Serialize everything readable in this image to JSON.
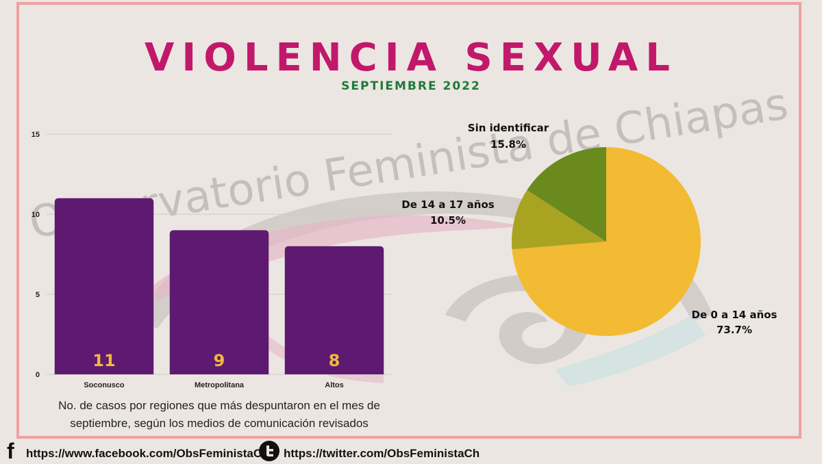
{
  "header": {
    "title": "VIOLENCIA SEXUAL",
    "subtitle": "SEPTIEMBRE 2022"
  },
  "watermark_text": "Observatorio Feminista de Chiapas",
  "chart_data": [
    {
      "type": "bar",
      "categories": [
        "Soconusco",
        "Metropolitana",
        "Altos"
      ],
      "values": [
        11,
        9,
        8
      ],
      "data_labels": [
        "11",
        "9",
        "8"
      ],
      "ylim": [
        0,
        15
      ],
      "yticks": [
        0,
        5,
        10,
        15
      ],
      "grid": true,
      "bar_color": "#5e1a70",
      "label_color": "#f0b840",
      "caption": "No. de casos por regiones que más despuntaron en el mes de septiembre, según los medios de comunicación revisados"
    },
    {
      "type": "pie",
      "slices": [
        {
          "label": "De 0 a 14 años",
          "value": 73.7,
          "pct_label": "73.7%",
          "color": "#f2bb33"
        },
        {
          "label": "De 14 a 17 años",
          "value": 10.5,
          "pct_label": "10.5%",
          "color": "#a9a322"
        },
        {
          "label": "Sin identificar",
          "value": 15.8,
          "pct_label": "15.8%",
          "color": "#6a8a1e"
        }
      ]
    }
  ],
  "footer": {
    "facebook_icon": "f",
    "facebook_url": "https://www.facebook.com/ObsFeministaCh/",
    "twitter_url": "https://twitter.com/ObsFeministaCh"
  }
}
